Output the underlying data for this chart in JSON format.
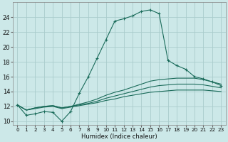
{
  "background_color": "#cce8e8",
  "grid_color": "#aacccc",
  "line_color": "#1a6b5a",
  "xlabel": "Humidex (Indice chaleur)",
  "xlim": [
    -0.5,
    23.5
  ],
  "ylim": [
    9.5,
    26.0
  ],
  "yticks": [
    10,
    12,
    14,
    16,
    18,
    20,
    22,
    24
  ],
  "xticks": [
    0,
    1,
    2,
    3,
    4,
    5,
    6,
    7,
    8,
    9,
    10,
    11,
    12,
    13,
    14,
    15,
    16,
    17,
    18,
    19,
    20,
    21,
    22,
    23
  ],
  "series1_x": [
    0,
    1,
    2,
    3,
    4,
    5,
    6,
    7,
    8,
    9,
    10,
    11,
    12,
    13,
    14,
    15,
    16,
    17,
    18,
    19,
    20,
    21,
    22,
    23
  ],
  "series1_y": [
    12.2,
    10.8,
    11.0,
    11.3,
    11.2,
    10.0,
    11.3,
    13.8,
    16.0,
    18.5,
    21.0,
    23.5,
    23.8,
    24.2,
    24.8,
    25.0,
    24.5,
    18.2,
    17.5,
    17.0,
    16.0,
    15.7,
    15.3,
    14.8
  ],
  "series2_x": [
    0,
    1,
    2,
    3,
    4,
    5,
    6,
    7,
    8,
    9,
    10,
    11,
    12,
    13,
    14,
    15,
    16,
    17,
    18,
    19,
    20,
    21,
    22,
    23
  ],
  "series2_y": [
    12.2,
    11.5,
    11.8,
    12.0,
    12.1,
    11.8,
    12.0,
    12.3,
    12.6,
    13.0,
    13.5,
    13.9,
    14.2,
    14.6,
    15.0,
    15.4,
    15.6,
    15.7,
    15.8,
    15.8,
    15.8,
    15.6,
    15.3,
    15.0
  ],
  "series3_x": [
    0,
    1,
    2,
    3,
    4,
    5,
    6,
    7,
    8,
    9,
    10,
    11,
    12,
    13,
    14,
    15,
    16,
    17,
    18,
    19,
    20,
    21,
    22,
    23
  ],
  "series3_y": [
    12.2,
    11.5,
    11.8,
    12.0,
    12.1,
    11.8,
    12.0,
    12.2,
    12.4,
    12.7,
    13.1,
    13.4,
    13.7,
    14.0,
    14.3,
    14.6,
    14.8,
    14.9,
    15.0,
    15.0,
    15.0,
    14.9,
    14.7,
    14.5
  ],
  "series4_x": [
    0,
    1,
    2,
    3,
    4,
    5,
    6,
    7,
    8,
    9,
    10,
    11,
    12,
    13,
    14,
    15,
    16,
    17,
    18,
    19,
    20,
    21,
    22,
    23
  ],
  "series4_y": [
    12.2,
    11.5,
    11.7,
    11.9,
    12.0,
    11.7,
    11.9,
    12.1,
    12.3,
    12.5,
    12.8,
    13.0,
    13.3,
    13.5,
    13.7,
    13.9,
    14.0,
    14.1,
    14.2,
    14.2,
    14.2,
    14.2,
    14.1,
    14.0
  ]
}
